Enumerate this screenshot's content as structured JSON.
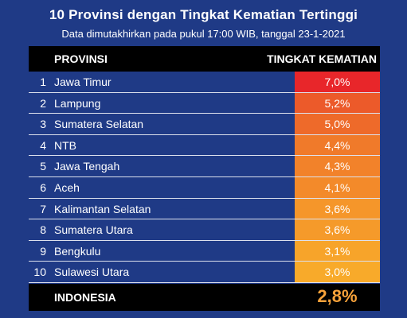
{
  "title": "10 Provinsi dengan Tingkat Kematian Tertinggi",
  "subtitle": "Data dimutakhirkan pada pukul 17:00 WIB, tanggal 23-1-2021",
  "header": {
    "province": "PROVINSI",
    "rate": "TINGKAT KEMATIAN"
  },
  "footer": {
    "label": "INDONESIA",
    "value_label": "2,8%",
    "value": 2.8,
    "color": "#f7a23a"
  },
  "chart_data": {
    "type": "table",
    "ranks": [
      "1",
      "2",
      "3",
      "4",
      "5",
      "6",
      "7",
      "8",
      "9",
      "10"
    ],
    "categories": [
      "Jawa Timur",
      "Lampung",
      "Sumatera Selatan",
      "NTB",
      "Jawa Tengah",
      "Aceh",
      "Kalimantan Selatan",
      "Sumatera Utara",
      "Bengkulu",
      "Sulawesi Utara"
    ],
    "values": [
      7.0,
      5.2,
      5.0,
      4.4,
      4.3,
      4.1,
      3.6,
      3.6,
      3.1,
      3.0
    ],
    "value_labels": [
      "7,0%",
      "5,2%",
      "5,0%",
      "4,4%",
      "4,3%",
      "4,1%",
      "3,6%",
      "3,6%",
      "3,1%",
      "3,0%"
    ],
    "colors": [
      "#e8262a",
      "#ec5a2a",
      "#ee6a2a",
      "#f07a2a",
      "#f2822a",
      "#f38a2a",
      "#f5962a",
      "#f59a2a",
      "#f7a42a",
      "#f8aa2a"
    ]
  }
}
